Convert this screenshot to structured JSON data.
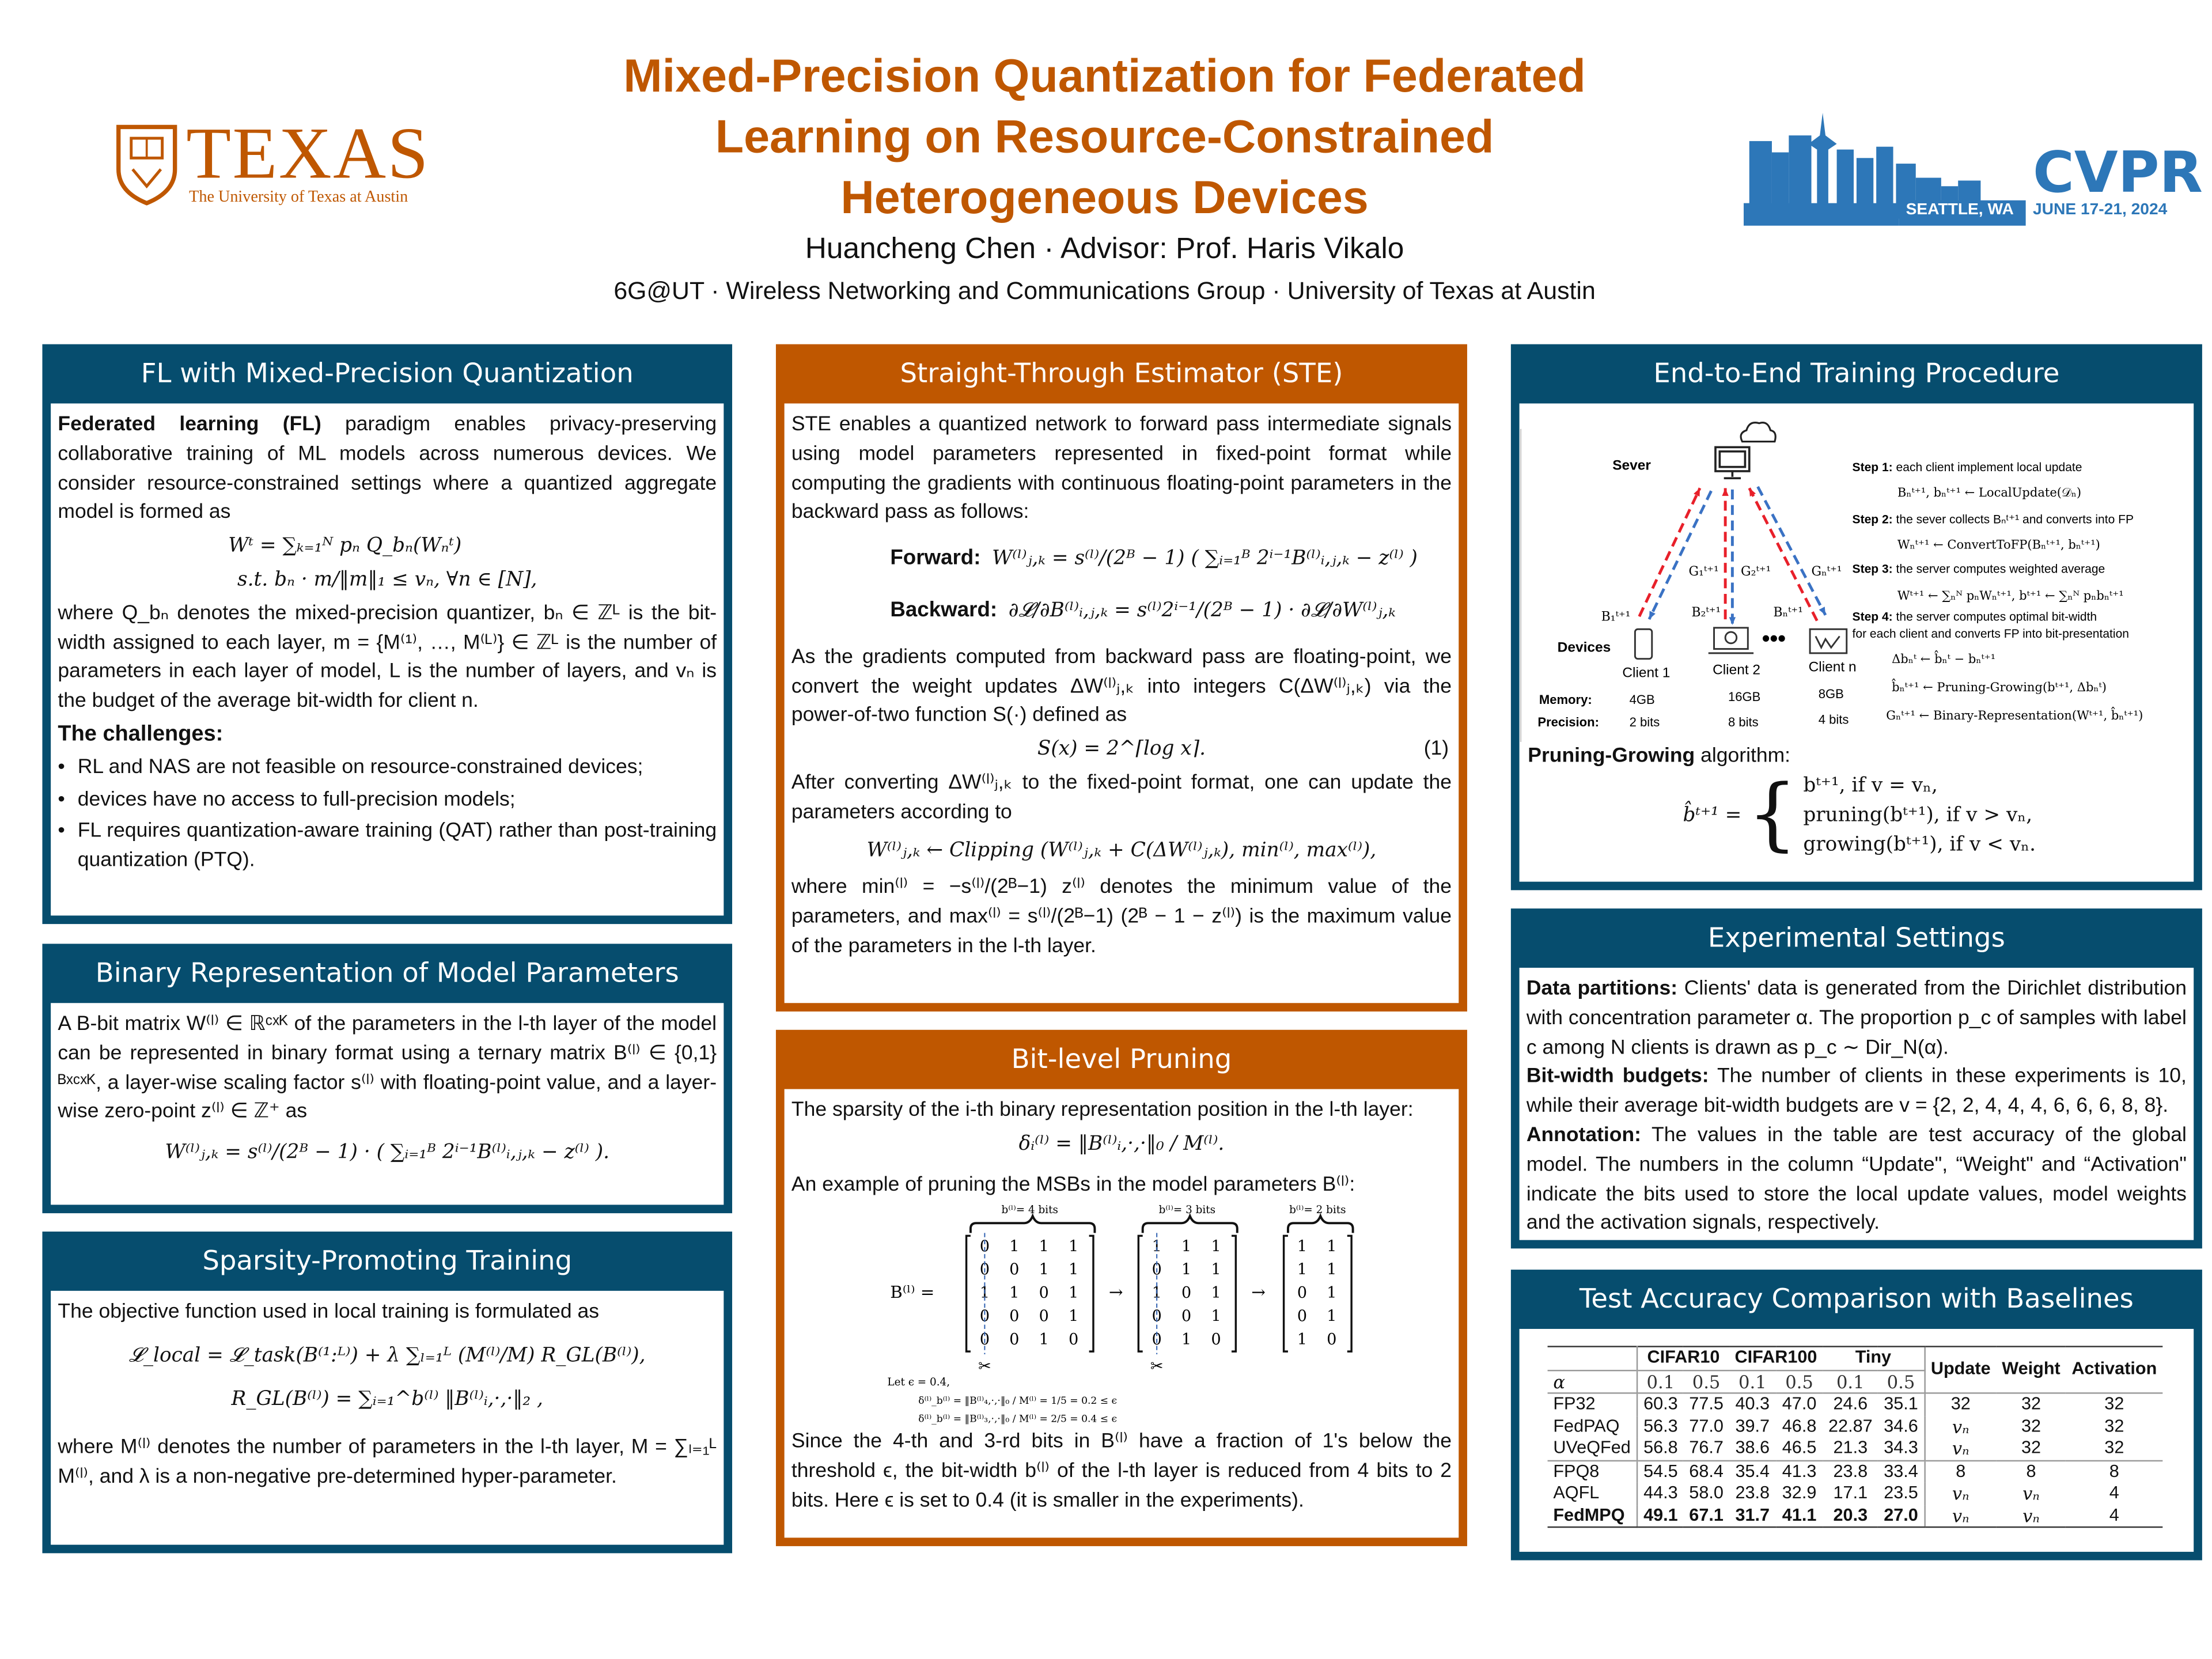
{
  "header": {
    "title_lines": [
      "Mixed-Precision Quantization for Federated",
      "Learning on Resource-Constrained",
      "Heterogeneous Devices"
    ],
    "authors": "Huancheng Chen · Advisor: Prof. Haris Vikalo",
    "affiliation": "6G@UT · Wireless Networking and Communications Group · University of Texas at Austin",
    "texas_logo": {
      "word": "TEXAS",
      "sub": "The University of Texas at Austin"
    },
    "cvpr_logo": {
      "name": "CVPR",
      "city": "SEATTLE, WA",
      "dates": "JUNE 17-21, 2024"
    },
    "colors": {
      "orange": "#bf5700",
      "teal": "#064d6e",
      "cvpr_blue": "#2d77b8"
    }
  },
  "fl": {
    "title": "FL with Mixed-Precision Quantization",
    "p1_bold": "Federated learning (FL)",
    "p1": " paradigm enables privacy-preserving collaborative training of ML models across numerous devices.  We consider resource-constrained settings where a quantized aggregate model is formed as",
    "eq1": "Wᵗ = ∑ₖ₌₁ᴺ pₙ Q_bₙ(Wₙᵗ)",
    "eq2": "s.t.   bₙ · m/‖m‖₁ ≤ vₙ, ∀n ∈ [N],",
    "p2": "where Q_bₙ denotes the mixed-precision quantizer, bₙ ∈ ℤᴸ is the bit-width assigned to each layer, m = {M⁽¹⁾, …, M⁽ᴸ⁾} ∈ ℤᴸ is the number of parameters in each layer of model, L is the number of layers, and vₙ is the budget of the average bit-width for client n.",
    "challenges_title": "The challenges:",
    "bullets": [
      "RL and NAS are not feasible on resource-constrained devices;",
      "devices have no access to full-precision models;",
      "FL requires quantization-aware training (QAT) rather than post-training quantization (PTQ)."
    ]
  },
  "binary": {
    "title": "Binary Representation of Model Parameters",
    "p1": "A B-bit matrix W⁽ˡ⁾ ∈ ℝᶜˣᴷ of the parameters in the l-th layer of the model can be represented in binary format using a ternary matrix B⁽ˡ⁾ ∈ {0,1}ᴮˣᶜˣᴷ, a layer-wise scaling factor s⁽ˡ⁾ with floating-point value, and a layer-wise zero-point z⁽ˡ⁾ ∈ ℤ⁺ as",
    "eq": "W⁽ˡ⁾ⱼ,ₖ = s⁽ˡ⁾/(2ᴮ − 1) · ( ∑ᵢ₌₁ᴮ 2ⁱ⁻¹B⁽ˡ⁾ᵢ,ⱼ,ₖ − z⁽ˡ⁾ )."
  },
  "sparsity": {
    "title": "Sparsity-Promoting Training",
    "p1": "The objective function used in local training is formulated as",
    "eq1": "𝓛_local = 𝓛_task(B⁽¹:ᴸ⁾) + λ ∑ₗ₌₁ᴸ (M⁽ˡ⁾/M) R_GL(B⁽ˡ⁾),",
    "eq2": "R_GL(B⁽ˡ⁾) = ∑ᵢ₌₁^b⁽ˡ⁾ ‖B⁽ˡ⁾ᵢ,·,·‖₂ ,",
    "p2": "where M⁽ˡ⁾ denotes the number of parameters in the l-th layer, M = ∑ₗ₌₁ᴸ M⁽ˡ⁾, and λ is a non-negative pre-determined hyper-parameter."
  },
  "ste": {
    "title": "Straight-Through Estimator (STE)",
    "p1": "STE enables a quantized network to forward pass intermediate signals using model parameters represented in fixed-point format while computing the gradients with continuous floating-point parameters in the backward pass as follows:",
    "forward_label": "Forward:",
    "forward_eq": "W⁽ˡ⁾ⱼ,ₖ = s⁽ˡ⁾/(2ᴮ − 1) ( ∑ᵢ₌₁ᴮ 2ⁱ⁻¹B⁽ˡ⁾ᵢ,ⱼ,ₖ − z⁽ˡ⁾ )",
    "backward_label": "Backward:",
    "backward_eq": "∂𝓛/∂B⁽ˡ⁾ᵢ,ⱼ,ₖ = s⁽ˡ⁾2ⁱ⁻¹/(2ᴮ − 1) · ∂𝓛/∂W⁽ˡ⁾ⱼ,ₖ",
    "p2": "As the gradients computed from backward pass are floating-point, we convert the weight updates ΔW⁽ˡ⁾ⱼ,ₖ into integers C(ΔW⁽ˡ⁾ⱼ,ₖ) via the power-of-two function S(·) defined as",
    "eq3": "S(x) = 2^⌈log x⌉.",
    "eq3_num": "(1)",
    "p3": "After converting ΔW⁽ˡ⁾ⱼ,ₖ to the fixed-point format, one can update the parameters according to",
    "eq4": "W⁽ˡ⁾ⱼ,ₖ ← Clipping (W⁽ˡ⁾ⱼ,ₖ + C(ΔW⁽ˡ⁾ⱼ,ₖ), min⁽ˡ⁾, max⁽ˡ⁾),",
    "p4": "where min⁽ˡ⁾ = −s⁽ˡ⁾/(2ᴮ−1) z⁽ˡ⁾ denotes the minimum value of the parameters, and max⁽ˡ⁾ = s⁽ˡ⁾/(2ᴮ−1) (2ᴮ − 1 − z⁽ˡ⁾) is the maximum value of the parameters in the l-th layer."
  },
  "pruning": {
    "title": "Bit-level Pruning",
    "p1": "The sparsity of the i-th binary representation position in the l-th layer:",
    "eq": "δᵢ⁽ˡ⁾ = ‖B⁽ˡ⁾ᵢ,·,·‖₀ / M⁽ˡ⁾.",
    "p2": "An example of pruning the MSBs in the model parameters B⁽ˡ⁾:",
    "figure": {
      "lhs": "B⁽ˡ⁾ =",
      "matrices": [
        {
          "label": "b⁽ˡ⁾= 4 bits",
          "rows": [
            [
              0,
              1,
              1,
              1
            ],
            [
              0,
              0,
              1,
              1
            ],
            [
              1,
              1,
              0,
              1
            ],
            [
              0,
              0,
              0,
              1
            ],
            [
              0,
              0,
              1,
              0
            ]
          ]
        },
        {
          "label": "b⁽ˡ⁾= 3 bits",
          "rows": [
            [
              1,
              1,
              1
            ],
            [
              0,
              1,
              1
            ],
            [
              1,
              0,
              1
            ],
            [
              0,
              0,
              1
            ],
            [
              0,
              1,
              0
            ]
          ]
        },
        {
          "label": "b⁽ˡ⁾= 2 bits",
          "rows": [
            [
              1,
              1
            ],
            [
              1,
              1
            ],
            [
              0,
              1
            ],
            [
              0,
              1
            ],
            [
              1,
              0
            ]
          ]
        }
      ],
      "arrow": "→",
      "scissors": "✂",
      "let": "Let ϵ = 0.4,",
      "delta1": "δ⁽ˡ⁾_b⁽ˡ⁾ = ‖B⁽ˡ⁾₄,·,·‖₀ / M⁽ˡ⁾ = 1/5 = 0.2 ≤ ϵ",
      "delta2": "δ⁽ˡ⁾_b⁽ˡ⁾ = ‖B⁽ˡ⁾₃,·,·‖₀ / M⁽ˡ⁾ = 2/5 = 0.4 ≤ ϵ"
    },
    "p3": "Since the 4-th and 3-rd bits in B⁽ˡ⁾ have a fraction of 1's below the threshold ϵ, the bit-width b⁽ˡ⁾ of the l-th layer is reduced from 4 bits to 2 bits.  Here ϵ is set to 0.4 (it is smaller in the experiments)."
  },
  "e2e": {
    "title": "End-to-End Training Procedure",
    "diagram": {
      "server_label": "Sever",
      "devices_label": "Devices",
      "clients": [
        "Client 1",
        "Client 2",
        "Client n"
      ],
      "memory_label": "Memory:",
      "memory": [
        "4GB",
        "16GB",
        "8GB"
      ],
      "precision_label": "Precision:",
      "precision": [
        "2 bits",
        "8 bits",
        "4 bits"
      ],
      "g_labels": [
        "G₁ᵗ⁺¹",
        "G₂ᵗ⁺¹",
        "Gₙᵗ⁺¹"
      ],
      "b_labels": [
        "B₁ᵗ⁺¹",
        "B₂ᵗ⁺¹",
        "Bₙᵗ⁺¹"
      ],
      "steps": [
        {
          "label": "Step 1:",
          "text": " each client implement local update",
          "eqs": [
            "Bₙᵗ⁺¹, bₙᵗ⁺¹ ← LocalUpdate(𝒟ₙ)"
          ]
        },
        {
          "label": "Step 2:",
          "text": " the sever collects Bₙᵗ⁺¹ and converts into FP",
          "eqs": [
            "Wₙᵗ⁺¹ ← ConvertToFP(Bₙᵗ⁺¹, bₙᵗ⁺¹)"
          ]
        },
        {
          "label": "Step 3:",
          "text": " the server computes weighted average",
          "eqs": [
            "Wᵗ⁺¹ ← ∑ₙᴺ pₙWₙᵗ⁺¹, bᵗ⁺¹ ← ∑ₙᴺ pₙbₙᵗ⁺¹"
          ]
        },
        {
          "label": "Step 4:",
          "text": " the server computes optimal bit-width",
          "text2": "for each client and converts FP into bit-presentation",
          "eqs": [
            "Δbₙᵗ ← b̂ₙᵗ − bₙᵗ⁺¹",
            "b̂ₙᵗ⁺¹ ← Pruning-Growing(bᵗ⁺¹, Δbₙᵗ)",
            "Gₙᵗ⁺¹ ← Binary-Representation(Wᵗ⁺¹, b̂ₙᵗ⁺¹)"
          ]
        }
      ],
      "arrow_colors": {
        "upload": "#e8202a",
        "download": "#3a72c4"
      }
    },
    "pg_bold": "Pruning-Growing",
    "pg_text": " algorithm:",
    "pg_lhs": "b̂ᵗ⁺¹ =",
    "pg_cases": [
      "bᵗ⁺¹,  if v = vₙ,",
      "pruning(bᵗ⁺¹),  if v > vₙ,",
      "growing(bᵗ⁺¹),  if v < vₙ."
    ]
  },
  "exp": {
    "title": "Experimental Settings",
    "items": [
      {
        "bold": "Data partitions:",
        "text": " Clients' data is generated from the Dirichlet distribution with concentration parameter α.  The proportion p_c of samples with label c among N clients is drawn as p_c ∼ Dir_N(α)."
      },
      {
        "bold": "Bit-width budgets:",
        "text": " The number of clients in these experiments is 10, while their average bit-width budgets are v = {2, 2, 4, 4, 4, 6, 6, 6, 8, 8}."
      },
      {
        "bold": "Annotation:",
        "text": " The values in the table are test accuracy of the global model.  The numbers in the column “Update\", “Weight\" and “Activation\" indicate the bits used to store the local update values, model weights and the activation signals, respectively."
      }
    ]
  },
  "results": {
    "title": "Test Accuracy Comparison with Baselines",
    "datasets": [
      "CIFAR10",
      "CIFAR100",
      "Tiny"
    ],
    "alpha_label": "α",
    "alphas": [
      "0.1",
      "0.5",
      "0.1",
      "0.5",
      "0.1",
      "0.5"
    ],
    "bit_headers": [
      "Update",
      "Weight",
      "Activation"
    ],
    "rows": [
      {
        "method": "FP32",
        "acc": [
          "60.3",
          "77.5",
          "40.3",
          "47.0",
          "24.6",
          "35.1"
        ],
        "bits": [
          "32",
          "32",
          "32"
        ]
      },
      {
        "method": "FedPAQ",
        "acc": [
          "56.3",
          "77.0",
          "39.7",
          "46.8",
          "22.87",
          "34.6"
        ],
        "bits": [
          "vₙ",
          "32",
          "32"
        ]
      },
      {
        "method": "UVeQFed",
        "acc": [
          "56.8",
          "76.7",
          "38.6",
          "46.5",
          "21.3",
          "34.3"
        ],
        "bits": [
          "vₙ",
          "32",
          "32"
        ]
      },
      {
        "method": "FPQ8",
        "acc": [
          "54.5",
          "68.4",
          "35.4",
          "41.3",
          "23.8",
          "33.4"
        ],
        "bits": [
          "8",
          "8",
          "8"
        ]
      },
      {
        "method": "AQFL",
        "acc": [
          "44.3",
          "58.0",
          "23.8",
          "32.9",
          "17.1",
          "23.5"
        ],
        "bits": [
          "vₙ",
          "vₙ",
          "4"
        ]
      },
      {
        "method": "FedMPQ",
        "acc": [
          "49.1",
          "67.1",
          "31.7",
          "41.1",
          "20.3",
          "27.0"
        ],
        "bits": [
          "vₙ",
          "vₙ",
          "4"
        ],
        "bold": true
      }
    ]
  }
}
